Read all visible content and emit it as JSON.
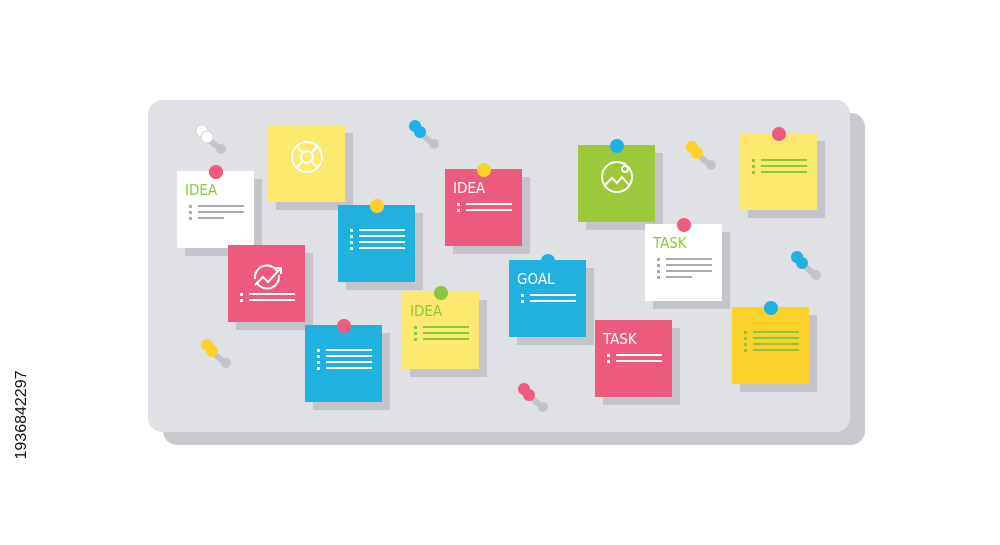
{
  "board": {
    "color": "#e0e1e5",
    "shadow_color": "#c8cacd"
  },
  "notes": [
    {
      "color": "#ffffff",
      "label": "IDEA",
      "label_color": "#8cc63f",
      "line_color": "#a9abb0",
      "lines": 3,
      "pin": "#ef5a7e",
      "icon": ""
    },
    {
      "color": "#fde96f",
      "label": "",
      "label_color": "",
      "line_color": "#ffffff",
      "lines": 0,
      "pin": "",
      "icon": "lifebuoy-icon"
    },
    {
      "color": "#ee5a7d",
      "label": "",
      "label_color": "",
      "line_color": "#ffffff",
      "lines": 2,
      "pin": "",
      "icon": "growth-chart-icon"
    },
    {
      "color": "#21b1e0",
      "label": "",
      "label_color": "",
      "line_color": "#ffffff",
      "lines": 4,
      "pin": "#fcd12a",
      "icon": ""
    },
    {
      "color": "#ee5a7d",
      "label": "IDEA",
      "label_color": "#ffffff",
      "line_color": "#ffffff",
      "lines": 2,
      "pin": "#fcd12a",
      "icon": ""
    },
    {
      "color": "#21b1e0",
      "label": "",
      "label_color": "",
      "line_color": "#ffffff",
      "lines": 4,
      "pin": "#ef5a7e",
      "icon": ""
    },
    {
      "color": "#fde96f",
      "label": "IDEA",
      "label_color": "#8cc63f",
      "line_color": "#8cc63f",
      "lines": 3,
      "pin": "#8cc63f",
      "icon": ""
    },
    {
      "color": "#21b1e0",
      "label": "GOAL",
      "label_color": "#ffffff",
      "line_color": "#ffffff",
      "lines": 2,
      "pin": "#21b1e0",
      "icon": ""
    },
    {
      "color": "#9dc83b",
      "label": "",
      "label_color": "",
      "line_color": "#ffffff",
      "lines": 0,
      "pin": "#21b1e0",
      "icon": "image-icon"
    },
    {
      "color": "#ffffff",
      "label": "TASK",
      "label_color": "#8cc63f",
      "line_color": "#a9abb0",
      "lines": 4,
      "pin": "#ef5a7e",
      "icon": ""
    },
    {
      "color": "#ee5a7d",
      "label": "TASK",
      "label_color": "#ffffff",
      "line_color": "#ffffff",
      "lines": 2,
      "pin": "",
      "icon": ""
    },
    {
      "color": "#fde96f",
      "label": "",
      "label_color": "",
      "line_color": "#8cc63f",
      "lines": 3,
      "pin": "#ef5a7e",
      "icon": ""
    },
    {
      "color": "#fcd12a",
      "label": "",
      "label_color": "",
      "line_color": "#8cc63f",
      "lines": 4,
      "pin": "#21b1e0",
      "icon": ""
    }
  ],
  "loose_pins": [
    "#ffffff",
    "#21b1e0",
    "#fcd12a",
    "#21b1e0",
    "#fcd12a",
    "#ef5a7e"
  ],
  "stock_id": "1936842297"
}
